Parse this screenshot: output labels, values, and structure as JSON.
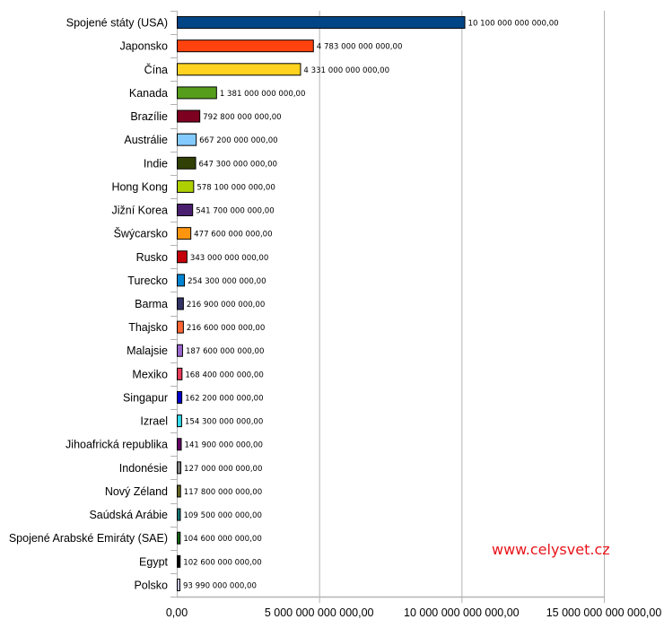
{
  "chart_data": {
    "type": "bar",
    "orientation": "horizontal",
    "title": "",
    "xlabel": "",
    "ylabel": "",
    "xlim": [
      0,
      15000000000000
    ],
    "x_ticks": [
      0,
      5000000000000,
      10000000000000,
      15000000000000
    ],
    "x_tick_labels": [
      "0,00",
      "5 000 000 000 000,00",
      "10 000 000 000 000,00",
      "15 000 000 000 000,00"
    ],
    "grid": "vertical major gridlines",
    "legend": "none",
    "categories": [
      "Spojené státy (USA)",
      "Japonsko",
      "Čína",
      "Kanada",
      "Brazílie",
      "Austrálie",
      "Indie",
      "Hong Kong",
      "Jižní Korea",
      "Šwýcarsko",
      "Rusko",
      "Turecko",
      "Barma",
      "Thajsko",
      "Malajsie",
      "Mexiko",
      "Singapur",
      "Izrael",
      "Jihoafrická republika",
      "Indonésie",
      "Nový Zéland",
      "Saúdská Arábie",
      "Spojené Arabské Emiráty (SAE)",
      "Egypt",
      "Polsko"
    ],
    "values": [
      10100000000000,
      4783000000000,
      4331000000000,
      1381000000000,
      792800000000,
      667200000000,
      647300000000,
      578100000000,
      541700000000,
      477600000000,
      343000000000,
      254300000000,
      216900000000,
      216600000000,
      187600000000,
      168400000000,
      162200000000,
      154300000000,
      141900000000,
      127000000000,
      117800000000,
      109500000000,
      104600000000,
      102600000000,
      93990000000
    ],
    "data_labels": [
      "10 100 000 000 000,00",
      "4 783 000 000 000,00",
      "4 331 000 000 000,00",
      "1 381 000 000 000,00",
      "792 800 000 000,00",
      "667 200 000 000,00",
      "647 300 000 000,00",
      "578 100 000 000,00",
      "541 700 000 000,00",
      "477 600 000 000,00",
      "343 000 000 000,00",
      "254 300 000 000,00",
      "216 900 000 000,00",
      "216 600 000 000,00",
      "187 600 000 000,00",
      "168 400 000 000,00",
      "162 200 000 000,00",
      "154 300 000 000,00",
      "141 900 000 000,00",
      "127 000 000 000,00",
      "117 800 000 000,00",
      "109 500 000 000,00",
      "104 600 000 000,00",
      "102 600 000 000,00",
      "93 990 000 000,00"
    ],
    "colors": [
      "#004586",
      "#ff420e",
      "#ffd320",
      "#579d1c",
      "#7e0021",
      "#83caff",
      "#314004",
      "#aecf00",
      "#4b1f6f",
      "#ff950e",
      "#c5000b",
      "#0084d1",
      "#333366",
      "#ff6633",
      "#9966cc",
      "#e83e5c",
      "#0000cc",
      "#33ddee",
      "#660066",
      "#808080",
      "#666622",
      "#117777",
      "#116611",
      "#000000",
      "#ccccee"
    ]
  },
  "watermark": "www.celysvet.cz"
}
